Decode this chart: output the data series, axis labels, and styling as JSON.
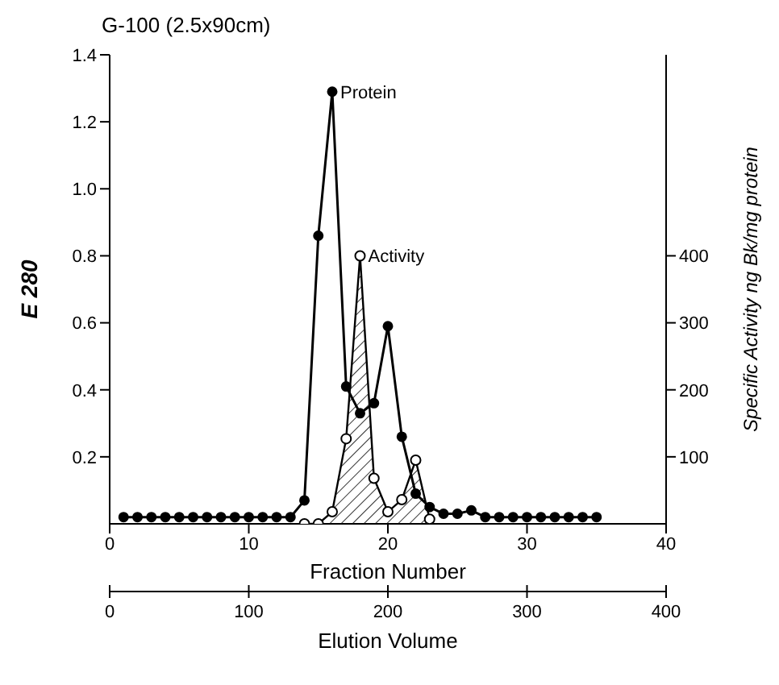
{
  "chart_data": {
    "type": "line",
    "title": "G-100 (2.5x90cm)",
    "xlabel": "Fraction Number",
    "ylabel": "E 280",
    "y2label": "Specific Activity ng Bk/mg protein",
    "x2label": "Elution Volume",
    "xlim": [
      0,
      40
    ],
    "xticks": [
      0,
      10,
      20,
      30,
      40
    ],
    "x2lim": [
      0,
      400
    ],
    "x2ticks": [
      0,
      100,
      200,
      300,
      400
    ],
    "ylim": [
      0,
      1.4
    ],
    "yticks": [
      0.2,
      0.4,
      0.6,
      0.8,
      {
        "value": 1,
        "label": "1.0"
      },
      1.2,
      1.4
    ],
    "y2lim": [
      0,
      700
    ],
    "y2ticks": [
      100,
      200,
      300,
      400
    ],
    "grid": false,
    "legend": false,
    "marker": "circle",
    "series": [
      {
        "color": "#000000",
        "x": [
          1,
          2,
          3,
          4,
          5,
          6,
          7,
          8,
          9,
          10,
          11,
          12,
          13,
          14,
          15,
          16,
          17,
          18,
          19,
          20,
          21,
          22,
          23,
          24,
          25,
          26,
          27,
          28,
          29,
          30,
          31,
          32,
          33,
          34,
          35
        ],
        "values": [
          0.02,
          0.02,
          0.02,
          0.02,
          0.02,
          0.02,
          0.02,
          0.02,
          0.02,
          0.02,
          0.02,
          0.02,
          0.02,
          0.07,
          0.86,
          1.29,
          0.41,
          0.33,
          0.36,
          0.59,
          0.26,
          0.09,
          0.05,
          0.03,
          0.03,
          0.04,
          0.02,
          0.02,
          0.02,
          0.02,
          0.02,
          0.02,
          0.02,
          0.02,
          0.02
        ]
      },
      {
        "type": "area",
        "axis": "y2",
        "color": "#000000",
        "x": [
          14,
          15,
          16,
          17,
          18,
          19,
          20,
          21,
          22,
          23
        ],
        "values": [
          0,
          0,
          18,
          127,
          400,
          68,
          18,
          36,
          95,
          7
        ]
      }
    ],
    "annotations": [
      {
        "text": "Protein",
        "x": 16,
        "y": 1.29
      },
      {
        "text": "Activity",
        "x": 18,
        "y": 0.8
      }
    ]
  }
}
